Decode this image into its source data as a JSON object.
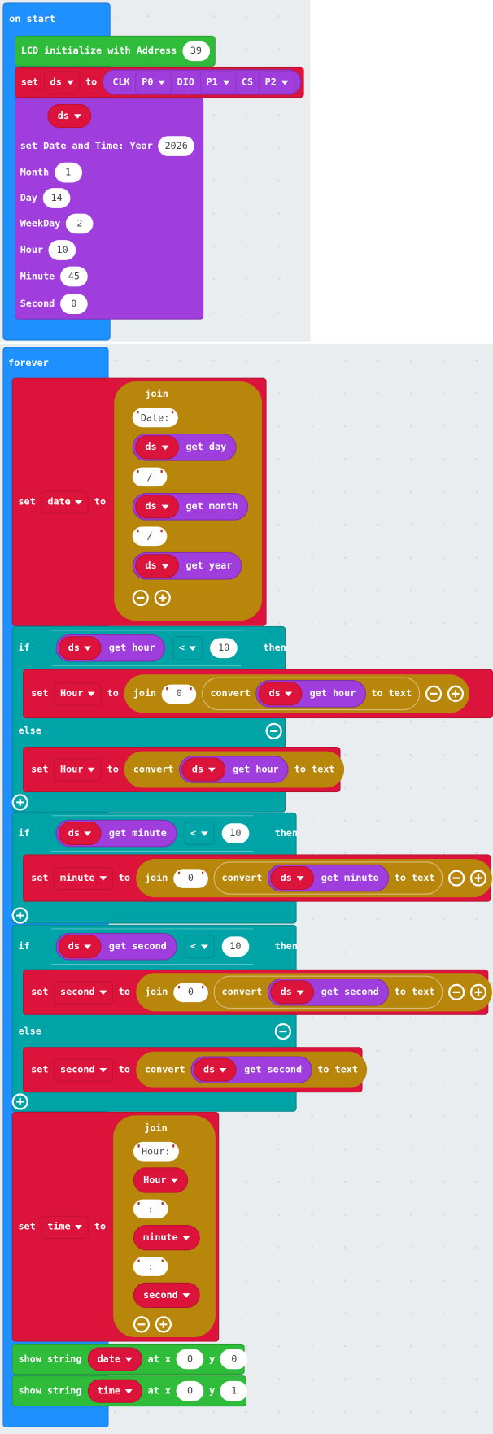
{
  "colors": {
    "events": "#1e90ff",
    "lcd": "#2ebc3a",
    "variables": "#dc143c",
    "rtc": "#9f3ddd",
    "text": "#b8860b",
    "logic": "#00a4a6",
    "workspace": "#e9edf0"
  },
  "on_start": {
    "label": "on start",
    "lcd": {
      "label": "LCD initialize with Address",
      "address": "39"
    },
    "set_ds": {
      "set": "set",
      "var": "ds",
      "to": "to",
      "clk": "CLK",
      "clk_pin": "P0",
      "dio": "DIO",
      "dio_pin": "P1",
      "cs": "CS",
      "cs_pin": "P2"
    },
    "datetime": {
      "var": "ds",
      "label": "set Date and Time: Year",
      "year": "2026",
      "fields": [
        {
          "label": "Month",
          "value": "1"
        },
        {
          "label": "Day",
          "value": "14"
        },
        {
          "label": "WeekDay",
          "value": "2"
        },
        {
          "label": "Hour",
          "value": "10"
        },
        {
          "label": "Minute",
          "value": "45"
        },
        {
          "label": "Second",
          "value": "0"
        }
      ]
    }
  },
  "forever": {
    "label": "forever",
    "set_date": {
      "set": "set",
      "var": "date",
      "to": "to",
      "join": "join",
      "items": [
        "Date:",
        "get day",
        "/",
        "get month",
        "/",
        "get year"
      ],
      "obj": "ds"
    },
    "if_hour": {
      "if": "if",
      "obj": "ds",
      "get": "get hour",
      "op": "<",
      "value": "10",
      "then": "then",
      "else": "else",
      "then_set": {
        "set": "set",
        "var": "Hour",
        "to": "to",
        "join": "join",
        "zero": "0",
        "convert": "convert",
        "obj": "ds",
        "get": "get hour",
        "to_text": "to text"
      },
      "else_set": {
        "set": "set",
        "var": "Hour",
        "to": "to",
        "convert": "convert",
        "obj": "ds",
        "get": "get hour",
        "to_text": "to text"
      }
    },
    "if_minute": {
      "if": "if",
      "obj": "ds",
      "get": "get minute",
      "op": "<",
      "value": "10",
      "then": "then",
      "then_set": {
        "set": "set",
        "var": "minute",
        "to": "to",
        "join": "join",
        "zero": "0",
        "convert": "convert",
        "obj": "ds",
        "get": "get minute",
        "to_text": "to text"
      }
    },
    "if_second": {
      "if": "if",
      "obj": "ds",
      "get": "get second",
      "op": "<",
      "value": "10",
      "then": "then",
      "else": "else",
      "then_set": {
        "set": "set",
        "var": "second",
        "to": "to",
        "join": "join",
        "zero": "0",
        "convert": "convert",
        "obj": "ds",
        "get": "get second",
        "to_text": "to text"
      },
      "else_set": {
        "set": "set",
        "var": "second",
        "to": "to",
        "convert": "convert",
        "obj": "ds",
        "get": "get second",
        "to_text": "to text"
      }
    },
    "set_time": {
      "set": "set",
      "var": "time",
      "to": "to",
      "join": "join",
      "items": [
        "Hour:",
        "Hour",
        ":",
        "minute",
        ":",
        "second"
      ]
    },
    "show_date": {
      "label": "show string",
      "var": "date",
      "at_x": "at x",
      "x": "0",
      "y_label": "y",
      "y": "0"
    },
    "show_time": {
      "label": "show string",
      "var": "time",
      "at_x": "at x",
      "x": "0",
      "y_label": "y",
      "y": "1"
    }
  }
}
